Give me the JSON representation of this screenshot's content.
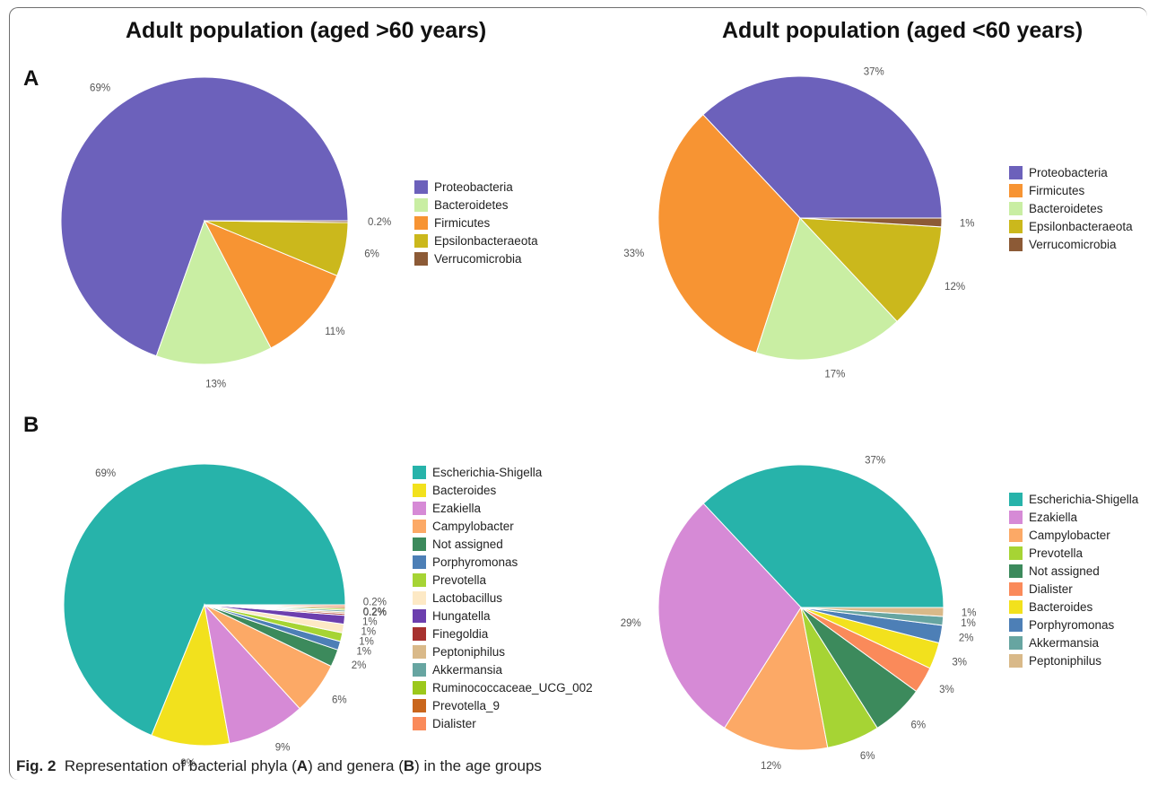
{
  "titles": {
    "left": "Adult population (aged >60 years)",
    "right": "Adult population (aged <60 years)"
  },
  "panels": {
    "a": "A",
    "b": "B"
  },
  "caption": {
    "prefix": "Fig. 2",
    "text_1": "Representation of bacterial phyla (",
    "letter_a": "A",
    "text_2": ") and genera (",
    "letter_b": "B",
    "text_3": ") in the age groups"
  },
  "chart_data": [
    {
      "type": "pie",
      "panel": "A",
      "title": "Adult population (aged >60 years)",
      "slices": [
        {
          "name": "Proteobacteria",
          "value": 69,
          "label": "69%",
          "color": "#6c61bb"
        },
        {
          "name": "Bacteroidetes",
          "value": 13,
          "label": "13%",
          "color": "#c9eea3"
        },
        {
          "name": "Firmicutes",
          "value": 11,
          "label": "11%",
          "color": "#f79433"
        },
        {
          "name": "Epsilonbacteraeota",
          "value": 6,
          "label": "6%",
          "color": "#cbb81c"
        },
        {
          "name": "Verrucomicrobia",
          "value": 0.2,
          "label": "0.2%",
          "color": "#8c5a36"
        }
      ],
      "legend": [
        "Proteobacteria",
        "Bacteroidetes",
        "Firmicutes",
        "Epsilonbacteraeota",
        "Verrucomicrobia"
      ],
      "legend_colors": [
        "#6c61bb",
        "#c9eea3",
        "#f79433",
        "#cbb81c",
        "#8c5a36"
      ],
      "legend_position": "right"
    },
    {
      "type": "pie",
      "panel": "A",
      "title": "Adult population (aged <60 years)",
      "slices": [
        {
          "name": "Proteobacteria",
          "value": 37,
          "label": "37%",
          "color": "#6c61bb"
        },
        {
          "name": "Firmicutes",
          "value": 33,
          "label": "33%",
          "color": "#f79433"
        },
        {
          "name": "Bacteroidetes",
          "value": 17,
          "label": "17%",
          "color": "#c9eea3"
        },
        {
          "name": "Epsilonbacteraeota",
          "value": 12,
          "label": "12%",
          "color": "#cbb81c"
        },
        {
          "name": "Verrucomicrobia",
          "value": 1,
          "label": "1%",
          "color": "#8c5a36"
        }
      ],
      "legend": [
        "Proteobacteria",
        "Firmicutes",
        "Bacteroidetes",
        "Epsilonbacteraeota",
        "Verrucomicrobia"
      ],
      "legend_colors": [
        "#6c61bb",
        "#f79433",
        "#c9eea3",
        "#cbb81c",
        "#8c5a36"
      ],
      "legend_position": "right"
    },
    {
      "type": "pie",
      "panel": "B",
      "title": "Adult population (aged >60 years)",
      "slices": [
        {
          "name": "Escherichia-Shigella",
          "value": 69,
          "label": "69%",
          "color": "#27b3aa"
        },
        {
          "name": "Bacteroides",
          "value": 9,
          "label": "9%",
          "color": "#f2e11d"
        },
        {
          "name": "Ezakiella",
          "value": 9,
          "label": "9%",
          "color": "#d68ad6"
        },
        {
          "name": "Campylobacter",
          "value": 6,
          "label": "6%",
          "color": "#fca966"
        },
        {
          "name": "Not assigned",
          "value": 2,
          "label": "2%",
          "color": "#3c8a5c"
        },
        {
          "name": "Porphyromonas",
          "value": 1,
          "label": "1%",
          "color": "#4d7fb6"
        },
        {
          "name": "Prevotella",
          "value": 1,
          "label": "1%",
          "color": "#a6d434"
        },
        {
          "name": "Lactobacillus",
          "value": 1,
          "label": "1%",
          "color": "#fde9c5"
        },
        {
          "name": "Hungatella",
          "value": 1,
          "label": "1%",
          "color": "#6c3fae"
        },
        {
          "name": "Finegoldia",
          "value": 0.2,
          "label": "0.2%",
          "color": "#a7322f"
        },
        {
          "name": "Peptoniphilus",
          "value": 0.2,
          "label": "0.2%",
          "color": "#d9b989"
        },
        {
          "name": "Akkermansia",
          "value": 0.2,
          "label": "0.2%",
          "color": "#67a5a1"
        },
        {
          "name": "Ruminococcaceae_UCG_002",
          "value": 0.2,
          "label": "",
          "color": "#9cc81b"
        },
        {
          "name": "Prevotella_9",
          "value": 0.2,
          "label": "",
          "color": "#c9661c"
        },
        {
          "name": "Dialister",
          "value": 0.2,
          "label": "",
          "color": "#fa8a5a"
        }
      ],
      "legend": [
        "Escherichia-Shigella",
        "Bacteroides",
        "Ezakiella",
        "Campylobacter",
        "Not assigned",
        "Porphyromonas",
        "Prevotella",
        "Lactobacillus",
        "Hungatella",
        "Finegoldia",
        "Peptoniphilus",
        "Akkermansia",
        "Ruminococcaceae_UCG_002",
        "Prevotella_9",
        "Dialister"
      ],
      "legend_colors": [
        "#27b3aa",
        "#f2e11d",
        "#d68ad6",
        "#fca966",
        "#3c8a5c",
        "#4d7fb6",
        "#a6d434",
        "#fde9c5",
        "#6c3fae",
        "#a7322f",
        "#d9b989",
        "#67a5a1",
        "#9cc81b",
        "#c9661c",
        "#fa8a5a"
      ],
      "legend_position": "right"
    },
    {
      "type": "pie",
      "panel": "B",
      "title": "Adult population (aged <60 years)",
      "slices": [
        {
          "name": "Escherichia-Shigella",
          "value": 37,
          "label": "37%",
          "color": "#27b3aa"
        },
        {
          "name": "Ezakiella",
          "value": 29,
          "label": "29%",
          "color": "#d68ad6"
        },
        {
          "name": "Campylobacter",
          "value": 12,
          "label": "12%",
          "color": "#fca966"
        },
        {
          "name": "Prevotella",
          "value": 6,
          "label": "6%",
          "color": "#a6d434"
        },
        {
          "name": "Not assigned",
          "value": 6,
          "label": "6%",
          "color": "#3c8a5c"
        },
        {
          "name": "Dialister",
          "value": 3,
          "label": "3%",
          "color": "#fa8a5a"
        },
        {
          "name": "Bacteroides",
          "value": 3,
          "label": "3%",
          "color": "#f2e11d"
        },
        {
          "name": "Porphyromonas",
          "value": 2,
          "label": "2%",
          "color": "#4d7fb6"
        },
        {
          "name": "Akkermansia",
          "value": 1,
          "label": "1%",
          "color": "#67a5a1"
        },
        {
          "name": "Peptoniphilus",
          "value": 1,
          "label": "1%",
          "color": "#d9b989"
        }
      ],
      "legend": [
        "Escherichia-Shigella",
        "Ezakiella",
        "Campylobacter",
        "Prevotella",
        "Not assigned",
        "Dialister",
        "Bacteroides",
        "Porphyromonas",
        "Akkermansia",
        "Peptoniphilus"
      ],
      "legend_colors": [
        "#27b3aa",
        "#d68ad6",
        "#fca966",
        "#a6d434",
        "#3c8a5c",
        "#fa8a5a",
        "#f2e11d",
        "#4d7fb6",
        "#67a5a1",
        "#d9b989"
      ],
      "legend_position": "right"
    }
  ]
}
